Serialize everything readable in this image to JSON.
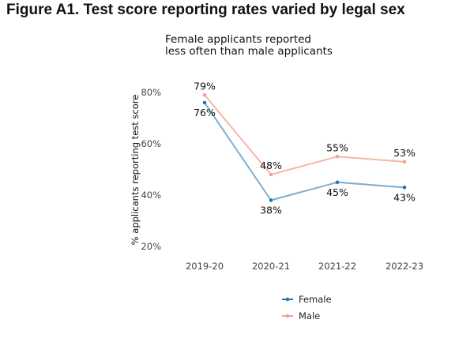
{
  "figure_title": "Figure A1. Test score reporting rates varied by legal sex",
  "chart_data": {
    "type": "line",
    "subtitle": [
      "Female applicants reported",
      "less often than male applicants"
    ],
    "ylabel": "% applicants reporting test score",
    "xlabel": "",
    "categories": [
      "2019-20",
      "2020-21",
      "2021-22",
      "2022-23"
    ],
    "y_ticks": [
      "20%",
      "40%",
      "60%",
      "80%"
    ],
    "ylim": [
      20,
      80
    ],
    "grid": false,
    "legend_position": "bottom",
    "series": [
      {
        "name": "Female",
        "values": [
          76,
          38,
          45,
          43
        ],
        "labels": [
          "76%",
          "38%",
          "45%",
          "43%"
        ],
        "color": "#1f77b4"
      },
      {
        "name": "Male",
        "values": [
          79,
          48,
          55,
          53
        ],
        "labels": [
          "79%",
          "48%",
          "55%",
          "53%"
        ],
        "color": "#f4a292"
      }
    ]
  }
}
